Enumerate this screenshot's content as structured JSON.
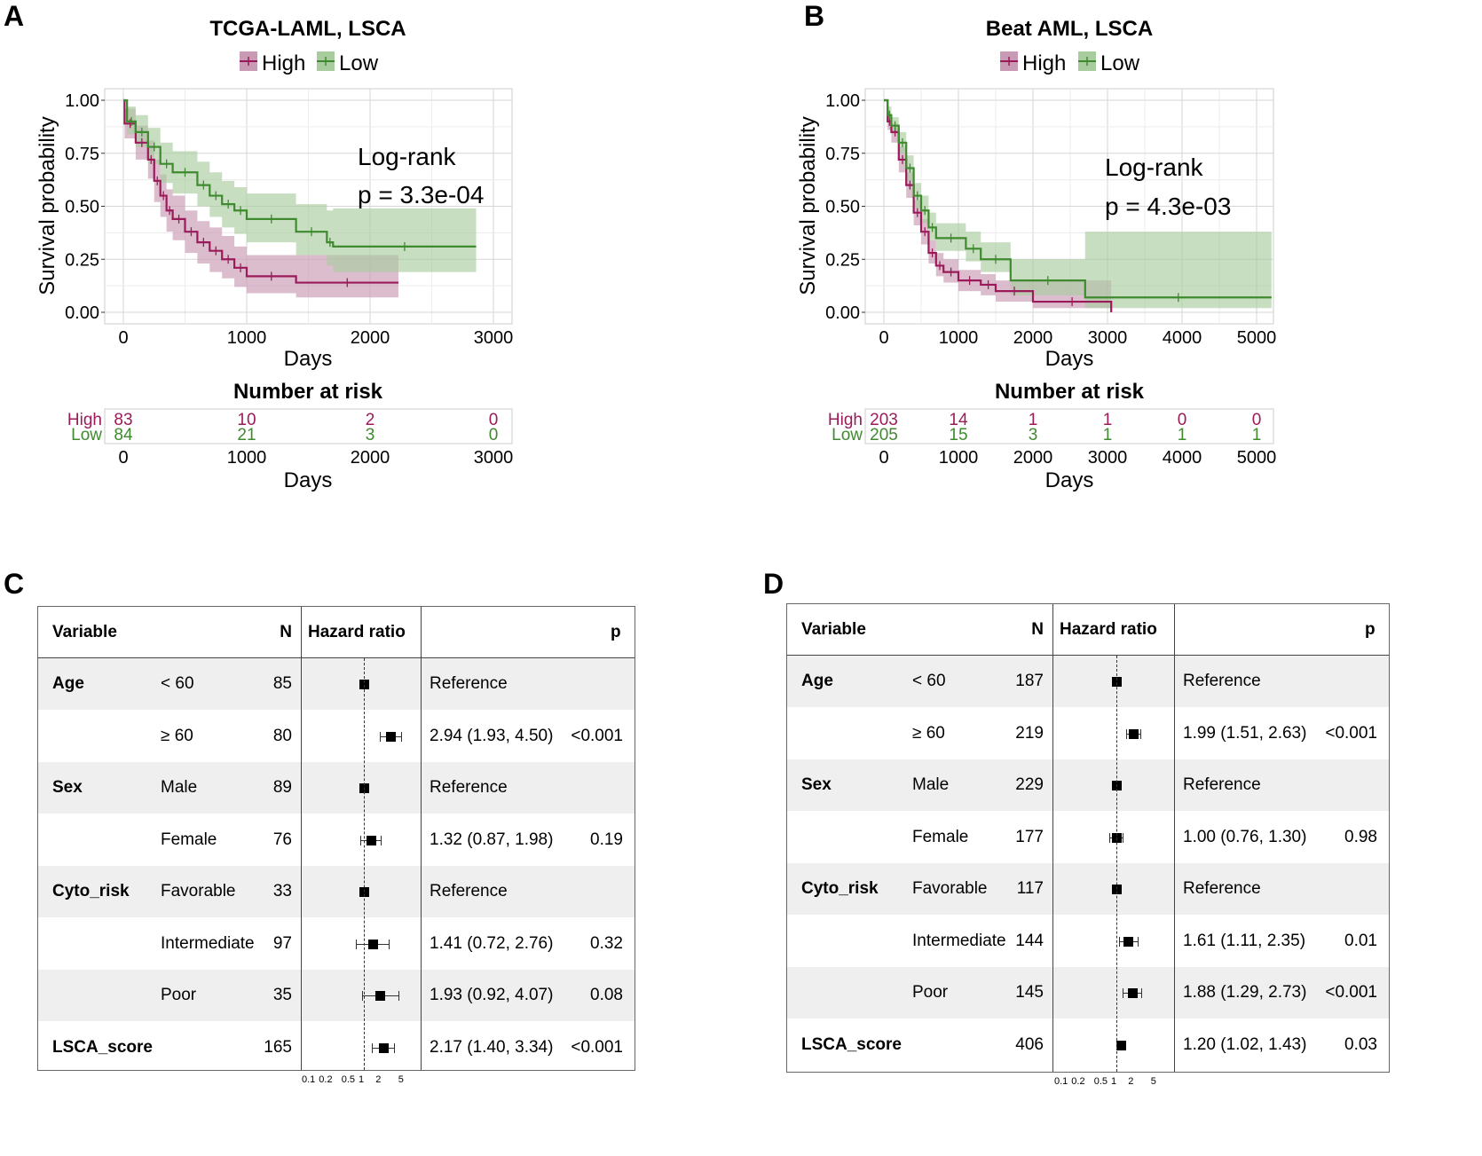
{
  "panel_labels": [
    "A",
    "B",
    "C",
    "D"
  ],
  "chart_data": [
    {
      "type": "line",
      "subtype": "kaplan-meier",
      "title": "TCGA-LAML, LSCA",
      "xlabel": "Days",
      "ylabel": "Survival probability",
      "xlim": [
        0,
        3000
      ],
      "ylim": [
        0,
        1
      ],
      "xticks": [
        0,
        1000,
        2000,
        3000
      ],
      "yticks": [
        "0.00",
        "0.25",
        "0.50",
        "0.75",
        "1.00"
      ],
      "grid": true,
      "legend": "top",
      "annotation": [
        "Log-rank",
        "p = 3.3e-04"
      ],
      "series": [
        {
          "name": "High",
          "color": "#9b1b5a",
          "band_color": "#c99ab4",
          "x": [
            0,
            10,
            100,
            200,
            250,
            300,
            350,
            400,
            500,
            600,
            700,
            800,
            900,
            1000,
            1400,
            2230
          ],
          "y": [
            1,
            0.89,
            0.8,
            0.72,
            0.62,
            0.55,
            0.48,
            0.44,
            0.38,
            0.33,
            0.29,
            0.25,
            0.21,
            0.17,
            0.14,
            0.14
          ],
          "lower": [
            1,
            0.82,
            0.72,
            0.63,
            0.52,
            0.45,
            0.38,
            0.34,
            0.28,
            0.23,
            0.19,
            0.16,
            0.12,
            0.09,
            0.07,
            0.07
          ],
          "upper": [
            1,
            0.96,
            0.88,
            0.81,
            0.72,
            0.65,
            0.58,
            0.55,
            0.48,
            0.43,
            0.4,
            0.36,
            0.31,
            0.27,
            0.27,
            0.27
          ]
        },
        {
          "name": "Low",
          "color": "#3f8a2f",
          "band_color": "#a9cc9f",
          "x": [
            0,
            30,
            100,
            200,
            300,
            400,
            600,
            700,
            800,
            900,
            1000,
            1400,
            1650,
            1700,
            2860
          ],
          "y": [
            1,
            0.9,
            0.85,
            0.78,
            0.7,
            0.66,
            0.6,
            0.55,
            0.51,
            0.48,
            0.44,
            0.38,
            0.33,
            0.31,
            0.31
          ],
          "lower": [
            1,
            0.84,
            0.78,
            0.7,
            0.61,
            0.56,
            0.5,
            0.45,
            0.4,
            0.37,
            0.33,
            0.27,
            0.22,
            0.19,
            0.19
          ],
          "upper": [
            1,
            0.97,
            0.93,
            0.87,
            0.8,
            0.76,
            0.71,
            0.66,
            0.62,
            0.59,
            0.56,
            0.51,
            0.48,
            0.49,
            0.49
          ]
        }
      ],
      "risk_table": {
        "title": "Number at risk",
        "xlabel": "Days",
        "rows": [
          {
            "name": "High",
            "values": [
              83,
              10,
              2,
              0
            ]
          },
          {
            "name": "Low",
            "values": [
              84,
              21,
              3,
              0
            ]
          }
        ]
      }
    },
    {
      "type": "line",
      "subtype": "kaplan-meier",
      "title": "Beat AML, LSCA",
      "xlabel": "Days",
      "ylabel": "Survival probability",
      "xlim": [
        0,
        5200
      ],
      "ylim": [
        0,
        1
      ],
      "xticks": [
        0,
        1000,
        2000,
        3000,
        4000,
        5000
      ],
      "yticks": [
        "0.00",
        "0.25",
        "0.50",
        "0.75",
        "1.00"
      ],
      "grid": true,
      "legend": "top",
      "annotation": [
        "Log-rank",
        "p = 4.3e-03"
      ],
      "series": [
        {
          "name": "High",
          "color": "#9b1b5a",
          "band_color": "#c99ab4",
          "x": [
            0,
            50,
            100,
            200,
            300,
            400,
            500,
            600,
            700,
            800,
            1000,
            1300,
            1500,
            2000,
            3050
          ],
          "y": [
            1,
            0.9,
            0.85,
            0.72,
            0.6,
            0.47,
            0.38,
            0.28,
            0.22,
            0.19,
            0.15,
            0.13,
            0.1,
            0.05,
            0.0
          ],
          "lower": [
            1,
            0.86,
            0.8,
            0.66,
            0.54,
            0.41,
            0.32,
            0.23,
            0.17,
            0.14,
            0.1,
            0.08,
            0.05,
            0.02,
            0.0
          ],
          "upper": [
            1,
            0.94,
            0.89,
            0.78,
            0.66,
            0.53,
            0.44,
            0.34,
            0.28,
            0.25,
            0.2,
            0.18,
            0.15,
            0.15,
            0.15
          ]
        },
        {
          "name": "Low",
          "color": "#3f8a2f",
          "band_color": "#a9cc9f",
          "x": [
            0,
            50,
            100,
            200,
            300,
            400,
            500,
            600,
            700,
            1100,
            1300,
            1700,
            2700,
            5200
          ],
          "y": [
            1,
            0.93,
            0.88,
            0.8,
            0.68,
            0.55,
            0.48,
            0.4,
            0.35,
            0.3,
            0.25,
            0.15,
            0.07,
            0.07
          ],
          "lower": [
            1,
            0.89,
            0.84,
            0.75,
            0.62,
            0.49,
            0.42,
            0.34,
            0.29,
            0.24,
            0.19,
            0.08,
            0.02,
            0.02
          ],
          "upper": [
            1,
            0.97,
            0.92,
            0.85,
            0.74,
            0.61,
            0.55,
            0.47,
            0.42,
            0.38,
            0.33,
            0.25,
            0.38,
            0.38
          ]
        }
      ],
      "risk_table": {
        "title": "Number at risk",
        "xlabel": "Days",
        "rows": [
          {
            "name": "High",
            "values": [
              203,
              14,
              1,
              1,
              0,
              0
            ]
          },
          {
            "name": "Low",
            "values": [
              205,
              15,
              3,
              1,
              1,
              1
            ]
          }
        ]
      }
    }
  ],
  "forest_plots": [
    {
      "headers": {
        "variable": "Variable",
        "n": "N",
        "hr": "Hazard ratio",
        "p": "p"
      },
      "xticks": [
        "0.1",
        "0.2",
        "0.5",
        "1",
        "2",
        "5"
      ],
      "rows": [
        {
          "variable": "Age",
          "level": "< 60",
          "n": "85",
          "hr": 1,
          "lo": 1,
          "hi": 1,
          "est": "Reference",
          "p": ""
        },
        {
          "variable": "",
          "level": "≥ 60",
          "n": "80",
          "hr": 2.94,
          "lo": 1.93,
          "hi": 4.5,
          "est": "2.94 (1.93, 4.50)",
          "p": "<0.001"
        },
        {
          "variable": "Sex",
          "level": "Male",
          "n": "89",
          "hr": 1,
          "lo": 1,
          "hi": 1,
          "est": "Reference",
          "p": ""
        },
        {
          "variable": "",
          "level": "Female",
          "n": "76",
          "hr": 1.32,
          "lo": 0.87,
          "hi": 1.98,
          "est": "1.32 (0.87, 1.98)",
          "p": "0.19"
        },
        {
          "variable": "Cyto_risk",
          "level": "Favorable",
          "n": "33",
          "hr": 1,
          "lo": 1,
          "hi": 1,
          "est": "Reference",
          "p": ""
        },
        {
          "variable": "",
          "level": "Intermediate",
          "n": "97",
          "hr": 1.41,
          "lo": 0.72,
          "hi": 2.76,
          "est": "1.41 (0.72, 2.76)",
          "p": "0.32"
        },
        {
          "variable": "",
          "level": "Poor",
          "n": "35",
          "hr": 1.93,
          "lo": 0.92,
          "hi": 4.07,
          "est": "1.93 (0.92, 4.07)",
          "p": "0.08"
        },
        {
          "variable": "LSCA_score",
          "level": "",
          "n": "165",
          "hr": 2.17,
          "lo": 1.4,
          "hi": 3.34,
          "est": "2.17 (1.40, 3.34)",
          "p": "<0.001"
        }
      ]
    },
    {
      "headers": {
        "variable": "Variable",
        "n": "N",
        "hr": "Hazard ratio",
        "p": "p"
      },
      "xticks": [
        "0.1",
        "0.2",
        "0.5",
        "1",
        "2",
        "5"
      ],
      "rows": [
        {
          "variable": "Age",
          "level": "< 60",
          "n": "187",
          "hr": 1,
          "lo": 1,
          "hi": 1,
          "est": "Reference",
          "p": ""
        },
        {
          "variable": "",
          "level": "≥ 60",
          "n": "219",
          "hr": 1.99,
          "lo": 1.51,
          "hi": 2.63,
          "est": "1.99 (1.51, 2.63)",
          "p": "<0.001"
        },
        {
          "variable": "Sex",
          "level": "Male",
          "n": "229",
          "hr": 1,
          "lo": 1,
          "hi": 1,
          "est": "Reference",
          "p": ""
        },
        {
          "variable": "",
          "level": "Female",
          "n": "177",
          "hr": 1.0,
          "lo": 0.76,
          "hi": 1.3,
          "est": "1.00 (0.76, 1.30)",
          "p": "0.98"
        },
        {
          "variable": "Cyto_risk",
          "level": "Favorable",
          "n": "117",
          "hr": 1,
          "lo": 1,
          "hi": 1,
          "est": "Reference",
          "p": ""
        },
        {
          "variable": "",
          "level": "Intermediate",
          "n": "144",
          "hr": 1.61,
          "lo": 1.11,
          "hi": 2.35,
          "est": "1.61 (1.11, 2.35)",
          "p": "0.01"
        },
        {
          "variable": "",
          "level": "Poor",
          "n": "145",
          "hr": 1.88,
          "lo": 1.29,
          "hi": 2.73,
          "est": "1.88 (1.29, 2.73)",
          "p": "<0.001"
        },
        {
          "variable": "LSCA_score",
          "level": "",
          "n": "406",
          "hr": 1.2,
          "lo": 1.02,
          "hi": 1.43,
          "est": "1.20 (1.02, 1.43)",
          "p": "0.03"
        }
      ]
    }
  ]
}
